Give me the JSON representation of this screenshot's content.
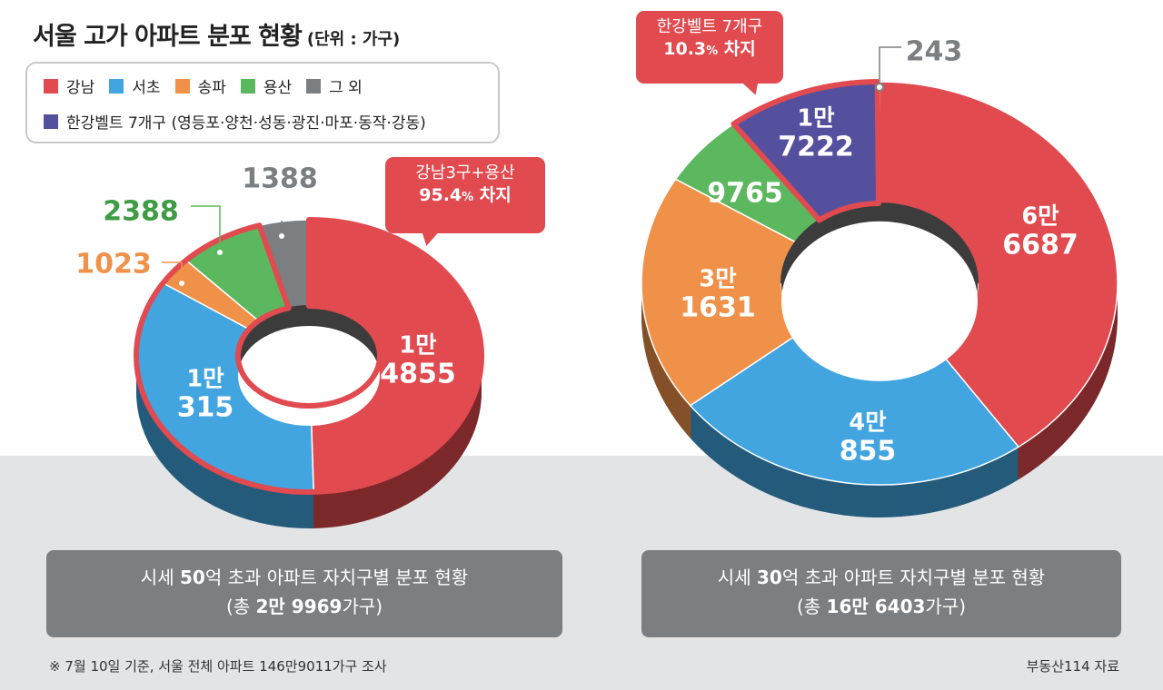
{
  "title": "서울 고가 아파트 분포 현황",
  "title_unit": "(단위 : 가구)",
  "legend": {
    "items": [
      {
        "label": "강남",
        "color": "#e14a4f"
      },
      {
        "label": "서초",
        "color": "#42a5e0"
      },
      {
        "label": "송파",
        "color": "#f0914a"
      },
      {
        "label": "용산",
        "color": "#5cb85f"
      },
      {
        "label": "그 외",
        "color": "#7b7f82"
      }
    ],
    "hangang_label": "한강벨트 7개구 (영등포·양천·성동·광진·마포·동작·강동)",
    "hangang_color": "#54509e"
  },
  "chart_data": [
    {
      "type": "pie",
      "title": "시세 50억 초과 아파트 자치구별 분포 현황",
      "total": "(총 2만 9969가구)",
      "total_prefix": "(총 ",
      "total_bold": "2만 9969",
      "total_suffix": "가구)",
      "caption_pre": "시세 ",
      "caption_bold": "50",
      "caption_post": "억 초과 아파트 자치구별 분포 현황",
      "categories": [
        "강남",
        "서초",
        "송파",
        "용산",
        "그 외"
      ],
      "values": [
        14855,
        10315,
        1023,
        2388,
        1388
      ],
      "labels": [
        [
          "1만",
          "4855"
        ],
        [
          "1만",
          "315"
        ],
        [
          "",
          "1023"
        ],
        [
          "",
          "2388"
        ],
        [
          "",
          "1388"
        ]
      ],
      "colors": [
        "#e14a4f",
        "#42a5e0",
        "#f0914a",
        "#5cb85f",
        "#7b7f82"
      ],
      "callout": {
        "line1": "강남3구+용산",
        "pct": "95.4",
        "pct_unit": "%",
        "suffix": " 차지"
      }
    },
    {
      "type": "pie",
      "title": "시세 30억 초과 아파트 자치구별 분포 현황",
      "total": "(총 16만 6403가구)",
      "total_prefix": "(총 ",
      "total_bold": "16만 6403",
      "total_suffix": "가구)",
      "caption_pre": "시세 ",
      "caption_bold": "30",
      "caption_post": "억 초과 아파트 자치구별 분포 현황",
      "categories": [
        "강남",
        "서초",
        "송파",
        "용산",
        "한강벨트 7개구",
        "그 외"
      ],
      "values": [
        66687,
        40855,
        31631,
        9765,
        17222,
        243
      ],
      "labels": [
        [
          "6만",
          "6687"
        ],
        [
          "4만",
          "855"
        ],
        [
          "3만",
          "1631"
        ],
        [
          "",
          "9765"
        ],
        [
          "1만",
          "7222"
        ],
        [
          "",
          "243"
        ]
      ],
      "colors": [
        "#e14a4f",
        "#42a5e0",
        "#f0914a",
        "#5cb85f",
        "#54509e",
        "#7b7f82"
      ],
      "callout": {
        "line1": "한강벨트 7개구",
        "pct": "10.3",
        "pct_unit": "%",
        "suffix": " 차지"
      }
    }
  ],
  "footnote": "※ 7월 10일 기준, 서울 전체 아파트 146만9011가구 조사",
  "source": "부동산114 자료"
}
